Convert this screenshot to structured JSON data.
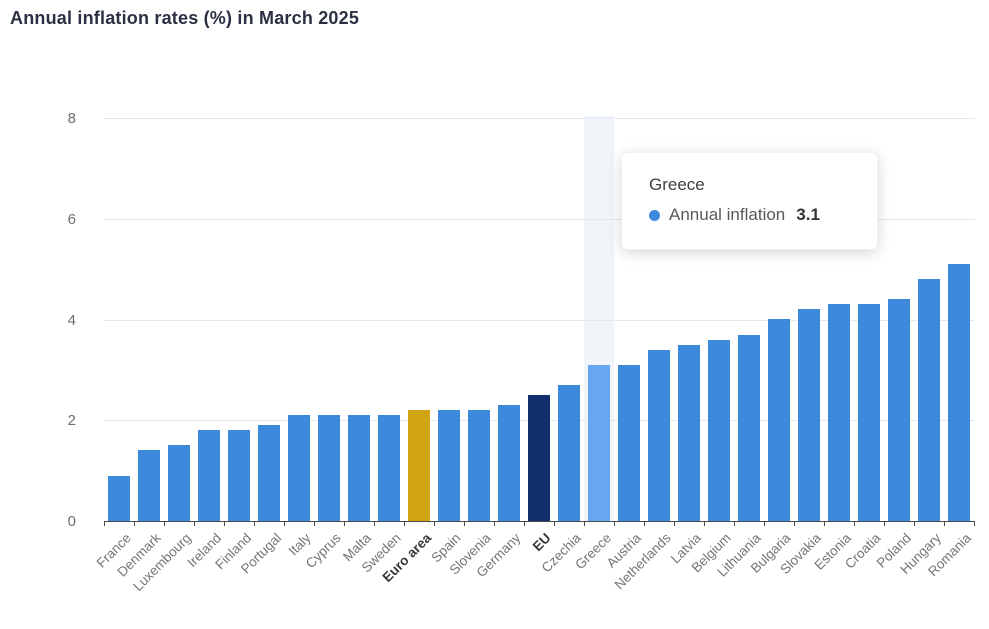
{
  "title": "Annual inflation rates (%) in March 2025",
  "tooltip": {
    "country": "Greece",
    "series_label": "Annual inflation",
    "value": "3.1",
    "marker_color": "#3d89dc"
  },
  "colors": {
    "bar_default": "#3d89dc",
    "bar_euro_area": "#d1a413",
    "bar_eu": "#132f6d",
    "bar_highlight": "#66a7f0",
    "hover_band": "#f1f4f9",
    "gridline": "#e3e9f2",
    "axis_line": "#4a4a4a",
    "y_tick_label": "#6b6e72",
    "x_tick_label": "#757575",
    "x_tick_label_bold": "#3a3a3a",
    "title": "#2b3143"
  },
  "chart_data": {
    "type": "bar",
    "title": "Annual inflation rates (%) in March 2025",
    "series_name": "Annual inflation",
    "categories": [
      "France",
      "Denmark",
      "Luxembourg",
      "Ireland",
      "Finland",
      "Portugal",
      "Italy",
      "Cyprus",
      "Malta",
      "Sweden",
      "Euro area",
      "Spain",
      "Slovenia",
      "Germany",
      "EU",
      "Czechia",
      "Greece",
      "Austria",
      "Netherlands",
      "Latvia",
      "Belgium",
      "Lithuania",
      "Bulgaria",
      "Slovakia",
      "Estonia",
      "Croatia",
      "Poland",
      "Hungary",
      "Romania"
    ],
    "values": [
      0.9,
      1.4,
      1.5,
      1.8,
      1.8,
      1.9,
      2.1,
      2.1,
      2.1,
      2.1,
      2.2,
      2.2,
      2.2,
      2.3,
      2.5,
      2.7,
      3.1,
      3.1,
      3.4,
      3.5,
      3.6,
      3.7,
      4.0,
      4.2,
      4.3,
      4.3,
      4.4,
      4.8,
      5.1
    ],
    "xlabel": "",
    "ylabel": "",
    "ylim": [
      0,
      8
    ],
    "yticks": [
      0,
      2,
      4,
      6,
      8
    ],
    "grid": true,
    "legend": "none",
    "bold_categories": [
      "Euro area",
      "EU"
    ],
    "highlighted_category": "Greece",
    "default_bar_color": "#3d89dc",
    "special_bar_colors": {
      "Euro area": "#d1a413",
      "EU": "#132f6d",
      "Greece": "#66a7f0"
    }
  }
}
